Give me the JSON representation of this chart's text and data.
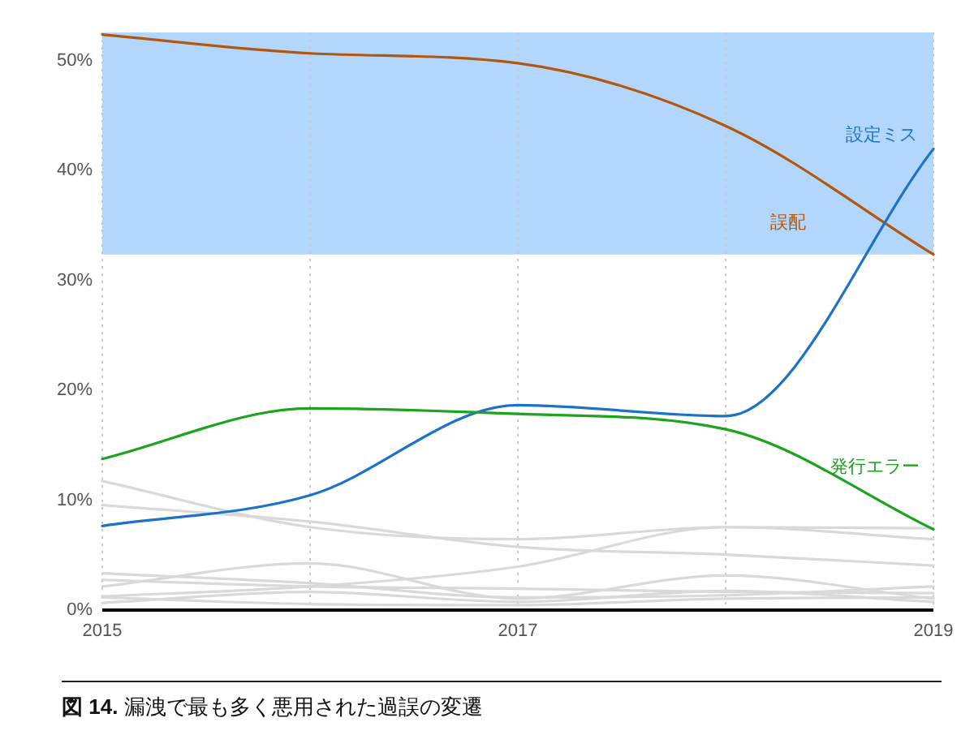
{
  "chart_data": {
    "type": "line",
    "x": [
      2015,
      2016,
      2017,
      2018,
      2019
    ],
    "xlim": [
      2015,
      2019
    ],
    "xticks": [
      2015,
      {
        "value": 2016,
        "label": null
      },
      2017,
      {
        "value": 2018,
        "label": null
      },
      2019
    ],
    "ylim": [
      0,
      52.4
    ],
    "yticks": [
      {
        "value": 0,
        "label": "0%"
      },
      {
        "value": 10,
        "label": "10%"
      },
      {
        "value": 20,
        "label": "20%"
      },
      {
        "value": 30,
        "label": "30%"
      },
      {
        "value": 40,
        "label": "40%"
      },
      {
        "value": 50,
        "label": "50%"
      }
    ],
    "grid": "x",
    "marker": "none",
    "line_style": "solid",
    "bands": [
      {
        "axis": "y",
        "from": 32.2,
        "to": 52.4,
        "color": "#b3d6fd"
      }
    ],
    "series": [
      {
        "color": "#d9d9d9",
        "values": [
          11.6,
          7.4,
          6.3,
          7.4,
          7.3
        ]
      },
      {
        "color": "#d9d9d9",
        "values": [
          9.4,
          7.9,
          5.6,
          4.9,
          3.9
        ]
      },
      {
        "color": "#d9d9d9",
        "values": [
          1.1,
          2.0,
          3.8,
          7.4,
          6.3
        ]
      },
      {
        "color": "#d9d9d9",
        "values": [
          2.0,
          4.1,
          0.9,
          3.0,
          0.9
        ]
      },
      {
        "color": "#d9d9d9",
        "values": [
          3.2,
          2.3,
          1.0,
          1.2,
          2.0
        ]
      },
      {
        "color": "#d9d9d9",
        "values": [
          2.6,
          2.0,
          1.8,
          1.5,
          1.4
        ]
      },
      {
        "color": "#d9d9d9",
        "values": [
          0.5,
          1.5,
          0.6,
          1.6,
          0.6
        ]
      },
      {
        "color": "#d9d9d9",
        "values": [
          1.0,
          0.4,
          0.3,
          0.9,
          1.0
        ]
      },
      {
        "name": "誤配",
        "color": "#b3570f",
        "values": [
          52.2,
          50.5,
          49.6,
          43.9,
          32.2
        ]
      },
      {
        "name": "設定ミス",
        "color": "#1b72c6",
        "values": [
          7.5,
          10.3,
          18.5,
          17.5,
          41.8
        ]
      },
      {
        "name": "発行エラー",
        "color": "#1da31d",
        "values": [
          13.6,
          18.2,
          17.7,
          16.3,
          7.2
        ]
      }
    ],
    "annotations": [
      "**図 14.** 漏洩で最も多く悪用された過誤の変遷"
    ]
  }
}
